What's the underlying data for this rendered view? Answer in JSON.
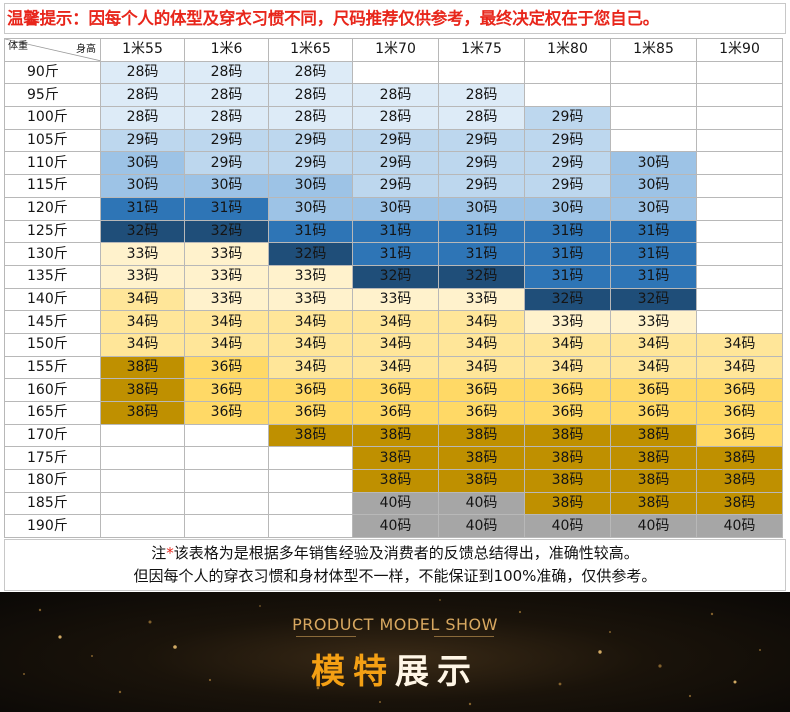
{
  "notice": "温馨提示：因每个人的体型及穿衣习惯不同，尺码推荐仅供参考，最终决定权在于您自己。",
  "table": {
    "corner_weight": "体重",
    "corner_height": "身高",
    "heights": [
      "1米55",
      "1米6",
      "1米65",
      "1米70",
      "1米75",
      "1米80",
      "1米85",
      "1米90"
    ],
    "rows": [
      {
        "weight": "90斤",
        "cells": [
          "28码",
          "28码",
          "28码",
          "",
          "",
          "",
          "",
          ""
        ]
      },
      {
        "weight": "95斤",
        "cells": [
          "28码",
          "28码",
          "28码",
          "28码",
          "28码",
          "",
          "",
          ""
        ]
      },
      {
        "weight": "100斤",
        "cells": [
          "28码",
          "28码",
          "28码",
          "28码",
          "28码",
          "29码",
          "",
          ""
        ]
      },
      {
        "weight": "105斤",
        "cells": [
          "29码",
          "29码",
          "29码",
          "29码",
          "29码",
          "29码",
          "",
          ""
        ]
      },
      {
        "weight": "110斤",
        "cells": [
          "30码",
          "29码",
          "29码",
          "29码",
          "29码",
          "29码",
          "30码",
          ""
        ]
      },
      {
        "weight": "115斤",
        "cells": [
          "30码",
          "30码",
          "30码",
          "29码",
          "29码",
          "29码",
          "30码",
          ""
        ]
      },
      {
        "weight": "120斤",
        "cells": [
          "31码",
          "31码",
          "30码",
          "30码",
          "30码",
          "30码",
          "30码",
          ""
        ]
      },
      {
        "weight": "125斤",
        "cells": [
          "32码",
          "32码",
          "31码",
          "31码",
          "31码",
          "31码",
          "31码",
          ""
        ]
      },
      {
        "weight": "130斤",
        "cells": [
          "33码",
          "33码",
          "32码",
          "31码",
          "31码",
          "31码",
          "31码",
          ""
        ]
      },
      {
        "weight": "135斤",
        "cells": [
          "33码",
          "33码",
          "33码",
          "32码",
          "32码",
          "31码",
          "31码",
          ""
        ]
      },
      {
        "weight": "140斤",
        "cells": [
          "34码",
          "33码",
          "33码",
          "33码",
          "33码",
          "32码",
          "32码",
          ""
        ]
      },
      {
        "weight": "145斤",
        "cells": [
          "34码",
          "34码",
          "34码",
          "34码",
          "34码",
          "33码",
          "33码",
          ""
        ]
      },
      {
        "weight": "150斤",
        "cells": [
          "34码",
          "34码",
          "34码",
          "34码",
          "34码",
          "34码",
          "34码",
          "34码"
        ]
      },
      {
        "weight": "155斤",
        "cells": [
          "38码",
          "36码",
          "34码",
          "34码",
          "34码",
          "34码",
          "34码",
          "34码"
        ]
      },
      {
        "weight": "160斤",
        "cells": [
          "38码",
          "36码",
          "36码",
          "36码",
          "36码",
          "36码",
          "36码",
          "36码"
        ]
      },
      {
        "weight": "165斤",
        "cells": [
          "38码",
          "36码",
          "36码",
          "36码",
          "36码",
          "36码",
          "36码",
          "36码"
        ]
      },
      {
        "weight": "170斤",
        "cells": [
          "",
          "",
          "38码",
          "38码",
          "38码",
          "38码",
          "38码",
          "36码"
        ]
      },
      {
        "weight": "175斤",
        "cells": [
          "",
          "",
          "",
          "38码",
          "38码",
          "38码",
          "38码",
          "38码"
        ]
      },
      {
        "weight": "180斤",
        "cells": [
          "",
          "",
          "",
          "38码",
          "38码",
          "38码",
          "38码",
          "38码"
        ]
      },
      {
        "weight": "185斤",
        "cells": [
          "",
          "",
          "",
          "40码",
          "40码",
          "38码",
          "38码",
          "38码"
        ]
      },
      {
        "weight": "190斤",
        "cells": [
          "",
          "",
          "",
          "40码",
          "40码",
          "40码",
          "40码",
          "40码"
        ]
      }
    ],
    "cell_colors": [
      [
        "c1",
        "c1",
        "c1",
        "c0",
        "c0",
        "c0",
        "c0",
        "c0"
      ],
      [
        "c1",
        "c1",
        "c1",
        "c1",
        "c1",
        "c0",
        "c0",
        "c0"
      ],
      [
        "c1",
        "c1",
        "c1",
        "c1",
        "c1",
        "c2",
        "c0",
        "c0"
      ],
      [
        "c2",
        "c2",
        "c2",
        "c2",
        "c2",
        "c2",
        "c0",
        "c0"
      ],
      [
        "c3",
        "c2",
        "c2",
        "c2",
        "c2",
        "c2",
        "c3",
        "c0"
      ],
      [
        "c3",
        "c3",
        "c3",
        "c2",
        "c2",
        "c2",
        "c3",
        "c0"
      ],
      [
        "c4",
        "c4",
        "c3",
        "c3",
        "c3",
        "c3",
        "c3",
        "c0"
      ],
      [
        "c5",
        "c5",
        "c4",
        "c4",
        "c4",
        "c4",
        "c4",
        "c0"
      ],
      [
        "c6",
        "c6",
        "c5",
        "c4",
        "c4",
        "c4",
        "c4",
        "c0"
      ],
      [
        "c6",
        "c6",
        "c6",
        "c5",
        "c5",
        "c4",
        "c4",
        "c0"
      ],
      [
        "c7",
        "c6",
        "c6",
        "c6",
        "c6",
        "c5",
        "c5",
        "c0"
      ],
      [
        "c7",
        "c7",
        "c7",
        "c7",
        "c7",
        "c6",
        "c6",
        "c0"
      ],
      [
        "c7",
        "c7",
        "c7",
        "c7",
        "c7",
        "c7",
        "c7",
        "c7"
      ],
      [
        "c9",
        "c8",
        "c7",
        "c7",
        "c7",
        "c7",
        "c7",
        "c7"
      ],
      [
        "c9",
        "c8",
        "c8",
        "c8",
        "c8",
        "c8",
        "c8",
        "c8"
      ],
      [
        "c9",
        "c8",
        "c8",
        "c8",
        "c8",
        "c8",
        "c8",
        "c8"
      ],
      [
        "c0",
        "c0",
        "c9",
        "c9",
        "c9",
        "c9",
        "c9",
        "c8"
      ],
      [
        "c0",
        "c0",
        "c0",
        "c9",
        "c9",
        "c9",
        "c9",
        "c9"
      ],
      [
        "c0",
        "c0",
        "c0",
        "c9",
        "c9",
        "c9",
        "c9",
        "c9"
      ],
      [
        "c0",
        "c0",
        "c0",
        "c10",
        "c10",
        "c9",
        "c9",
        "c9"
      ],
      [
        "c0",
        "c0",
        "c0",
        "c10",
        "c10",
        "c10",
        "c10",
        "c10"
      ]
    ],
    "palette": {
      "c0": "#ffffff",
      "c1": "#ddebf7",
      "c2": "#bdd7ee",
      "c3": "#9dc3e6",
      "c4": "#2e75b6",
      "c5": "#1f4e79",
      "c6": "#fff2cc",
      "c7": "#ffe699",
      "c8": "#ffd966",
      "c9": "#bf9000",
      "c10": "#a6a6a6"
    }
  },
  "note": {
    "prefix": "注",
    "star": "*",
    "line1": "该表格为是根据多年销售经验及消费者的反馈总结得出，准确性较高。",
    "line2": "但因每个人的穿衣习惯和身材体型不一样，不能保证到100%准确，仅供参考。"
  },
  "banner": {
    "english": "PRODUCT MODEL SHOW",
    "chinese": [
      "模",
      "特",
      "展",
      "示"
    ]
  }
}
